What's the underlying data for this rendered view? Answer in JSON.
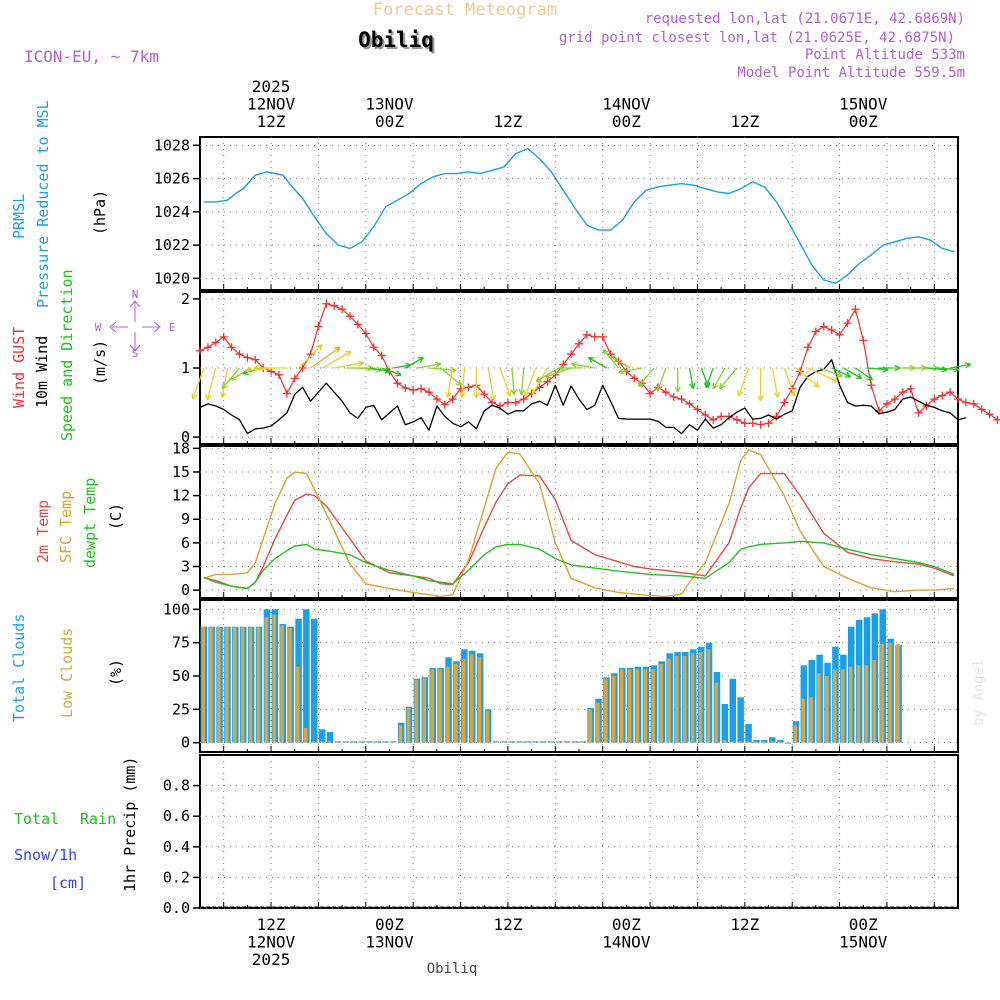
{
  "header": {
    "product_title": "Forecast Meteogram",
    "location": "Obiliq",
    "model": "ICON-EU, ~ 7km",
    "requested": "requested lon,lat (21.0671E, 42.6869N)",
    "grid_point": "grid point closest lon,lat (21.0625E, 42.6875N)",
    "point_altitude": "Point Altitude 533m",
    "model_altitude": "Model Point Altitude 559.5m",
    "footer_location": "Obiliq",
    "watermark": "by Angel"
  },
  "colors": {
    "pressure": "#1a9fe0",
    "gust": "#ee3333",
    "wind": "#000000",
    "temp2m": "#e84848",
    "sfc": "#e0a030",
    "dewpt": "#22c022",
    "total_clouds": "#1a9fe8",
    "low_clouds": "#d4a84a",
    "rain_label": "#22bb22",
    "snow_label": "#3344ee",
    "meta": "#b060d0",
    "title": "#f0c890"
  },
  "time_axis": {
    "start_hour": -9,
    "end_hour": 87,
    "top_labels": [
      {
        "hour": 0,
        "lines": [
          "2025",
          "12NOV",
          "12Z"
        ]
      },
      {
        "hour": 15,
        "lines": [
          "13NOV",
          "00Z"
        ]
      },
      {
        "hour": 30,
        "lines": [
          "12Z"
        ]
      },
      {
        "hour": 45,
        "lines": [
          "14NOV",
          "00Z"
        ]
      },
      {
        "hour": 60,
        "lines": [
          "12Z"
        ]
      },
      {
        "hour": 75,
        "lines": [
          "15NOV",
          "00Z"
        ]
      }
    ],
    "bottom_labels": [
      {
        "hour": 0,
        "lines": [
          "12Z",
          "12NOV",
          "2025"
        ]
      },
      {
        "hour": 15,
        "lines": [
          "00Z",
          "13NOV"
        ]
      },
      {
        "hour": 30,
        "lines": [
          "12Z"
        ]
      },
      {
        "hour": 45,
        "lines": [
          "00Z",
          "14NOV"
        ]
      },
      {
        "hour": 60,
        "lines": [
          "12Z"
        ]
      },
      {
        "hour": 75,
        "lines": [
          "00Z",
          "15NOV"
        ]
      }
    ]
  },
  "panel_labels": {
    "pressure": [
      "PRMSL",
      "Pressure Reduced to MSL",
      "(hPa)"
    ],
    "wind": [
      "Wind GUST",
      "10m Wind",
      "Speed and Direction",
      "(m/s)"
    ],
    "compass": {
      "n": "N",
      "s": "S",
      "w": "W",
      "e": "E"
    },
    "temp": [
      "2m Temp",
      "SFC Temp",
      "dewpt Temp",
      "(C)"
    ],
    "clouds": [
      "Total Clouds",
      "Low Clouds",
      "(%)"
    ],
    "precip": [
      "Total",
      "Rain",
      "Snow/1h",
      "[cm]",
      "1hr Precip (mm)"
    ]
  },
  "chart_data": [
    {
      "type": "line",
      "name": "pressure",
      "title": "PRMSL Pressure Reduced to MSL",
      "ylabel": "(hPa)",
      "ylim": [
        1019.3,
        1028.5
      ],
      "yticks": [
        1020,
        1022,
        1024,
        1026,
        1028
      ],
      "x": [
        -8.5,
        -7,
        -5.5,
        -4.5,
        -3.5,
        -2,
        -0.5,
        0.5,
        1.5,
        2.5,
        4,
        5.5,
        7,
        8.5,
        10,
        11.5,
        13,
        14.5,
        16,
        17.5,
        19,
        20.5,
        22,
        23.5,
        25,
        26.5,
        28,
        29.5,
        31,
        32.5,
        34,
        35.5,
        37,
        38.5,
        40,
        41.5,
        43,
        44.5,
        46,
        47.5,
        49,
        50.5,
        52,
        53.5,
        55,
        56.5,
        58,
        59.5,
        61,
        62.5,
        64,
        65.5,
        67,
        68.5,
        70,
        71.5,
        73,
        74.5,
        76,
        77.5,
        79,
        80.5,
        82,
        83.5,
        85,
        86.5
      ],
      "values": [
        1024.6,
        1024.6,
        1024.7,
        1025.1,
        1025.4,
        1026.2,
        1026.4,
        1026.3,
        1026.2,
        1025.6,
        1024.8,
        1023.7,
        1022.7,
        1022.0,
        1021.8,
        1022.2,
        1023.1,
        1024.3,
        1024.7,
        1025.1,
        1025.7,
        1026.1,
        1026.3,
        1026.3,
        1026.4,
        1026.3,
        1026.5,
        1026.7,
        1027.5,
        1027.8,
        1027.2,
        1026.4,
        1025.3,
        1024.2,
        1023.2,
        1022.9,
        1022.9,
        1023.5,
        1024.6,
        1025.3,
        1025.5,
        1025.6,
        1025.7,
        1025.6,
        1025.4,
        1025.2,
        1025.1,
        1025.4,
        1025.8,
        1025.5,
        1024.6,
        1023.4,
        1022.1,
        1020.8,
        1019.9,
        1019.7,
        1020.2,
        1020.9,
        1021.4,
        1022.0,
        1022.2,
        1022.4,
        1022.5,
        1022.3,
        1021.8,
        1021.6
      ]
    },
    {
      "type": "line",
      "name": "wind",
      "title": "Wind GUST / 10m Wind Speed and Direction",
      "ylabel": "(m/s)",
      "ylim": [
        -0.1,
        2.1
      ],
      "yticks": [
        0,
        1,
        2
      ],
      "x_start": -9,
      "x_step": 1,
      "series": [
        {
          "name": "Wind GUST",
          "values": [
            1.25,
            1.3,
            1.37,
            1.45,
            1.3,
            1.2,
            1.15,
            1.12,
            1.0,
            0.95,
            0.9,
            0.63,
            0.85,
            1.0,
            1.2,
            1.6,
            1.93,
            1.9,
            1.85,
            1.75,
            1.63,
            1.5,
            1.3,
            1.18,
            0.95,
            0.78,
            0.71,
            0.68,
            0.7,
            0.65,
            0.55,
            0.47,
            0.55,
            0.7,
            0.72,
            0.75,
            0.62,
            0.5,
            0.45,
            0.5,
            0.5,
            0.55,
            0.63,
            0.72,
            0.8,
            0.9,
            1.05,
            1.2,
            1.35,
            1.48,
            1.45,
            1.45,
            1.2,
            1.1,
            0.95,
            0.85,
            0.78,
            0.63,
            0.72,
            0.65,
            0.58,
            0.55,
            0.48,
            0.4,
            0.32,
            0.25,
            0.3,
            0.3,
            0.25,
            0.2,
            0.2,
            0.18,
            0.2,
            0.3,
            0.5,
            0.7,
            0.95,
            1.3,
            1.53,
            1.6,
            1.55,
            1.48,
            1.65,
            1.85,
            1.4,
            0.75,
            0.38,
            0.48,
            0.55,
            0.65,
            0.7,
            0.35,
            0.45,
            0.55,
            0.6,
            0.65,
            0.55,
            0.5,
            0.48,
            0.4,
            0.33,
            0.25
          ]
        },
        {
          "name": "10m Wind",
          "values": [
            0.43,
            0.48,
            0.45,
            0.4,
            0.32,
            0.25,
            0.05,
            0.12,
            0.13,
            0.16,
            0.25,
            0.35,
            0.62,
            0.72,
            0.52,
            0.65,
            0.78,
            0.65,
            0.52,
            0.35,
            0.27,
            0.43,
            0.46,
            0.25,
            0.35,
            0.45,
            0.18,
            0.22,
            0.28,
            0.1,
            0.45,
            0.3,
            0.2,
            0.15,
            0.22,
            0.12,
            0.38,
            0.46,
            0.42,
            0.33,
            0.38,
            0.38,
            0.48,
            0.52,
            0.46,
            0.75,
            0.46,
            0.74,
            0.55,
            0.4,
            0.46,
            0.75,
            0.52,
            0.27,
            0.26,
            0.26,
            0.26,
            0.26,
            0.23,
            0.14,
            0.14,
            0.05,
            0.18,
            0.1,
            0.26,
            0.13,
            0.18,
            0.28,
            0.36,
            0.42,
            0.26,
            0.27,
            0.32,
            0.26,
            0.33,
            0.38,
            0.72,
            0.88,
            0.95,
            0.98,
            1.12,
            0.75,
            0.5,
            0.45,
            0.46,
            0.45,
            0.34,
            0.36,
            0.4,
            0.55,
            0.58,
            0.52,
            0.46,
            0.43,
            0.38,
            0.35,
            0.25,
            0.28
          ]
        }
      ],
      "arrows": {
        "x_start": -8.5,
        "x_step": 1.5,
        "note": "direction arrows at 1 m/s baseline, length scaled by wind speed",
        "dirs_deg_to": [
          200,
          195,
          190,
          220,
          240,
          255,
          265,
          270,
          45,
          55,
          60,
          80,
          90,
          95,
          100,
          110,
          80,
          60,
          80,
          95,
          130,
          190,
          185,
          180,
          170,
          160,
          175,
          185,
          200,
          210,
          240,
          250,
          270,
          280,
          300,
          320,
          300,
          260,
          220,
          200,
          180,
          170,
          160,
          200,
          210,
          220,
          200,
          180,
          170,
          160,
          130,
          115,
          110,
          115,
          120,
          125,
          95,
          90,
          90,
          90,
          90,
          95,
          95,
          80,
          80
        ],
        "lengths": [
          0.55,
          0.55,
          0.5,
          0.45,
          0.4,
          0.35,
          0.5,
          0.55,
          0.55,
          0.6,
          0.55,
          0.5,
          0.45,
          0.4,
          0.35,
          0.35,
          0.3,
          0.35,
          0.4,
          0.45,
          0.45,
          0.5,
          0.5,
          0.5,
          0.55,
          0.5,
          0.45,
          0.45,
          0.5,
          0.5,
          0.45,
          0.45,
          0.4,
          0.4,
          0.35,
          0.4,
          0.4,
          0.4,
          0.4,
          0.4,
          0.4,
          0.35,
          0.35,
          0.35,
          0.4,
          0.45,
          0.5,
          0.55,
          0.5,
          0.5,
          0.5,
          0.55,
          0.4,
          0.35,
          0.35,
          0.35,
          0.35,
          0.35,
          0.4,
          0.4,
          0.4,
          0.35,
          0.35,
          0.35,
          0.35
        ]
      }
    },
    {
      "type": "line",
      "name": "temperature",
      "title": "2m Temp / SFC Temp / dewpt Temp",
      "ylabel": "(C)",
      "ylim": [
        -1,
        18.3
      ],
      "yticks": [
        0,
        3,
        6,
        9,
        12,
        15,
        18
      ],
      "x": [
        -8.5,
        -7,
        -5,
        -3,
        -2,
        -1,
        0.5,
        2,
        3,
        4.5,
        5.5,
        7,
        10,
        12,
        15,
        18,
        20,
        21.5,
        23,
        25,
        27,
        28.5,
        30,
        31.5,
        34,
        36,
        38,
        41,
        44,
        46,
        48,
        50,
        52,
        53,
        55,
        58,
        59.5,
        60.5,
        62,
        65,
        67,
        70,
        73,
        76,
        79,
        82,
        84,
        86.5
      ],
      "series": [
        {
          "name": "2m Temp",
          "values": [
            1.6,
            1.2,
            0.5,
            0.2,
            1.0,
            3.0,
            6.5,
            9.5,
            11.4,
            12.2,
            12.0,
            10.7,
            6.5,
            3.7,
            2.2,
            1.8,
            1.5,
            0.8,
            0.7,
            3.5,
            8.0,
            11.2,
            13.5,
            14.6,
            14.5,
            11.5,
            6.3,
            4.5,
            3.6,
            3.0,
            2.7,
            2.5,
            2.2,
            2.1,
            1.8,
            6.0,
            10.5,
            13.0,
            14.8,
            14.8,
            12.0,
            7.2,
            4.8,
            4.0,
            3.6,
            3.3,
            2.8,
            1.8
          ]
        },
        {
          "name": "SFC Temp",
          "values": [
            1.5,
            2.0,
            2.0,
            2.2,
            3.5,
            6.5,
            11.0,
            14.2,
            15.0,
            14.8,
            12.8,
            9.7,
            3.3,
            0.8,
            0.2,
            -0.3,
            -0.6,
            -0.8,
            -0.6,
            3.8,
            10.5,
            15.5,
            17.5,
            17.3,
            13.5,
            6.0,
            1.5,
            0.3,
            -0.3,
            -0.5,
            -0.7,
            -0.8,
            -0.5,
            1.0,
            3.5,
            11.0,
            16.5,
            17.8,
            17.2,
            12.0,
            7.5,
            3.0,
            1.5,
            0.3,
            -0.2,
            0.0,
            0.0,
            0.2
          ]
        },
        {
          "name": "dewpt Temp",
          "values": [
            1.6,
            1.0,
            0.5,
            0.2,
            1.0,
            2.5,
            4.0,
            5.0,
            5.6,
            5.8,
            5.2,
            5.0,
            4.5,
            3.5,
            2.5,
            1.8,
            1.2,
            1.0,
            0.8,
            2.5,
            4.5,
            5.5,
            5.8,
            5.8,
            5.2,
            4.0,
            3.2,
            2.8,
            2.4,
            2.2,
            2.0,
            1.9,
            1.8,
            1.7,
            1.5,
            3.5,
            5.2,
            5.5,
            5.8,
            6.0,
            6.2,
            6.0,
            5.2,
            4.5,
            4.0,
            3.5,
            3.0,
            2.0
          ]
        }
      ]
    },
    {
      "type": "bar",
      "name": "clouds",
      "title": "Total Clouds / Low Clouds",
      "ylabel": "(%)",
      "ylim": [
        -7,
        107
      ],
      "yticks": [
        0,
        25,
        50,
        75,
        100
      ],
      "x_start": -9,
      "x_step": 1,
      "series": [
        {
          "name": "Total Clouds",
          "values": [
            87,
            87,
            87,
            87,
            87,
            87,
            87,
            87,
            100,
            100,
            89,
            87,
            93,
            100,
            93,
            10,
            8,
            1,
            1,
            1,
            1,
            1,
            1,
            1,
            1,
            15,
            27,
            48,
            49,
            56,
            56,
            64,
            61,
            70,
            69,
            67,
            25,
            1,
            1,
            1,
            1,
            1,
            1,
            1,
            1,
            1,
            1,
            1,
            1,
            26,
            33,
            49,
            52,
            56,
            56,
            57,
            57,
            58,
            61,
            67,
            68,
            68,
            70,
            72,
            75,
            53,
            29,
            48,
            34,
            14,
            2,
            2,
            4,
            2,
            0,
            16,
            58,
            62,
            66,
            60,
            72,
            66,
            87,
            92,
            94,
            97,
            100,
            78,
            73
          ]
        },
        {
          "name": "Low Clouds",
          "values": [
            87,
            87,
            87,
            87,
            87,
            87,
            87,
            87,
            94,
            96,
            88,
            86,
            57,
            11,
            1,
            1,
            1,
            1,
            1,
            1,
            1,
            1,
            1,
            1,
            1,
            13,
            26,
            47,
            48,
            55,
            55,
            57,
            59,
            63,
            66,
            64,
            24,
            1,
            1,
            1,
            1,
            1,
            1,
            1,
            1,
            1,
            1,
            1,
            1,
            25,
            30,
            48,
            50,
            55,
            55,
            55,
            55,
            55,
            59,
            63,
            65,
            65,
            67,
            68,
            70,
            45,
            2,
            1,
            1,
            1,
            1,
            1,
            1,
            1,
            0,
            13,
            33,
            34,
            52,
            50,
            55,
            55,
            57,
            58,
            58,
            62,
            74,
            75,
            74
          ]
        }
      ]
    },
    {
      "type": "bar",
      "name": "precipitation",
      "title": "Total Rain Snow/1h [cm]",
      "ylabel": "1hr Precip (mm)",
      "ylim": [
        0,
        1.0
      ],
      "yticks": [
        0,
        0.2,
        0.4,
        0.6,
        0.8
      ],
      "note": "no precipitation forecast — all zero",
      "values": []
    }
  ]
}
